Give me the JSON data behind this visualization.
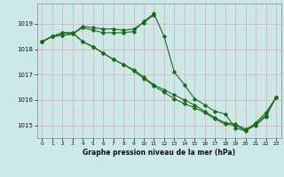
{
  "xlabel": "Graphe pression niveau de la mer (hPa)",
  "bg_color": "#cce8e8",
  "grid_color": "#aad0d0",
  "line_color": "#1a6b1a",
  "ylim": [
    1014.5,
    1019.8
  ],
  "xlim": [
    -0.5,
    23.5
  ],
  "yticks": [
    1015,
    1016,
    1017,
    1018,
    1019
  ],
  "xticks": [
    0,
    1,
    2,
    3,
    4,
    5,
    6,
    7,
    8,
    9,
    10,
    11,
    12,
    13,
    14,
    15,
    16,
    17,
    18,
    19,
    20,
    21,
    22,
    23
  ],
  "line1": [
    1018.3,
    1018.5,
    1018.55,
    1018.6,
    1018.85,
    1018.75,
    1018.65,
    1018.65,
    1018.65,
    1018.7,
    1019.1,
    1019.4,
    1018.5,
    1017.1,
    1016.6,
    1016.05,
    1015.8,
    1015.55,
    1015.45,
    1014.9,
    1014.78,
    1015.1,
    1015.5,
    1016.1
  ],
  "line2_x": [
    0,
    1,
    2,
    3,
    4,
    5,
    6,
    7,
    8,
    9,
    10,
    11
  ],
  "line2_y": [
    1018.3,
    1018.5,
    1018.55,
    1018.6,
    1018.9,
    1018.85,
    1018.8,
    1018.8,
    1018.75,
    1018.8,
    1019.05,
    1019.35
  ],
  "line3": [
    1018.3,
    1018.5,
    1018.65,
    1018.65,
    1018.3,
    1018.1,
    1017.85,
    1017.6,
    1017.4,
    1017.2,
    1016.9,
    1016.6,
    1016.4,
    1016.2,
    1016.0,
    1015.8,
    1015.55,
    1015.3,
    1015.1,
    1015.05,
    1014.85,
    1015.05,
    1015.4,
    1016.1
  ],
  "line4": [
    1018.3,
    1018.5,
    1018.65,
    1018.65,
    1018.3,
    1018.1,
    1017.85,
    1017.6,
    1017.4,
    1017.15,
    1016.85,
    1016.55,
    1016.3,
    1016.05,
    1015.85,
    1015.7,
    1015.5,
    1015.25,
    1015.05,
    1015.0,
    1014.8,
    1015.0,
    1015.35,
    1016.1
  ]
}
